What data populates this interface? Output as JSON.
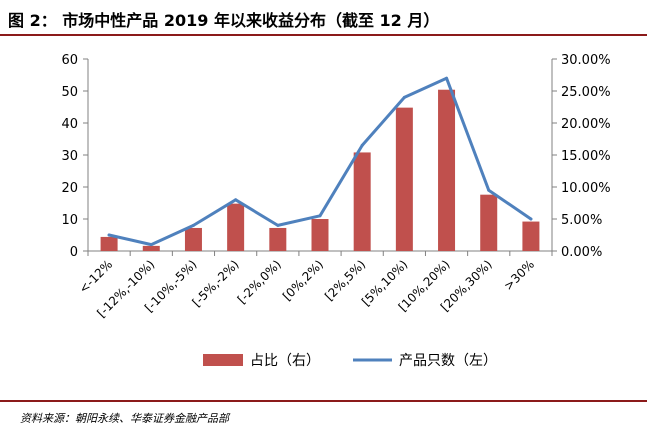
{
  "header": {
    "title": "图 2： 市场中性产品 2019 年以来收益分布（截至 12 月）"
  },
  "footer": {
    "source": "资料来源：朝阳永续、华泰证券金融产品部"
  },
  "colors": {
    "bar": "#c0504d",
    "line": "#4f81bd",
    "rule": "#8b1a1a"
  },
  "chart_data": {
    "type": "bar",
    "title": "",
    "categories": [
      "<-12%",
      "[-12%,-10%)",
      "[-10%,-5%)",
      "[-5%,-2%)",
      "[-2%,0%)",
      "[0%,2%)",
      "[2%,5%)",
      "[5%,10%)",
      "[10%,20%)",
      "[20%,30%)",
      ">30%"
    ],
    "series": [
      {
        "name": "占比（右）",
        "type": "bar",
        "axis": "right",
        "values": [
          2.2,
          0.8,
          3.6,
          7.4,
          3.6,
          5.0,
          15.4,
          22.4,
          25.2,
          8.8,
          4.6
        ]
      },
      {
        "name": "产品只数（左）",
        "type": "line",
        "axis": "left",
        "values": [
          5,
          2,
          8,
          16,
          8,
          11,
          33,
          48,
          54,
          19,
          10
        ]
      }
    ],
    "y_left": {
      "ylim": [
        0,
        60
      ],
      "ticks": [
        "0",
        "10",
        "20",
        "30",
        "40",
        "50",
        "60"
      ]
    },
    "y_right": {
      "ylim": [
        0,
        30
      ],
      "ticks": [
        "0.00%",
        "5.00%",
        "10.00%",
        "15.00%",
        "20.00%",
        "25.00%",
        "30.00%"
      ]
    },
    "grid": false,
    "legend_position": "bottom"
  }
}
